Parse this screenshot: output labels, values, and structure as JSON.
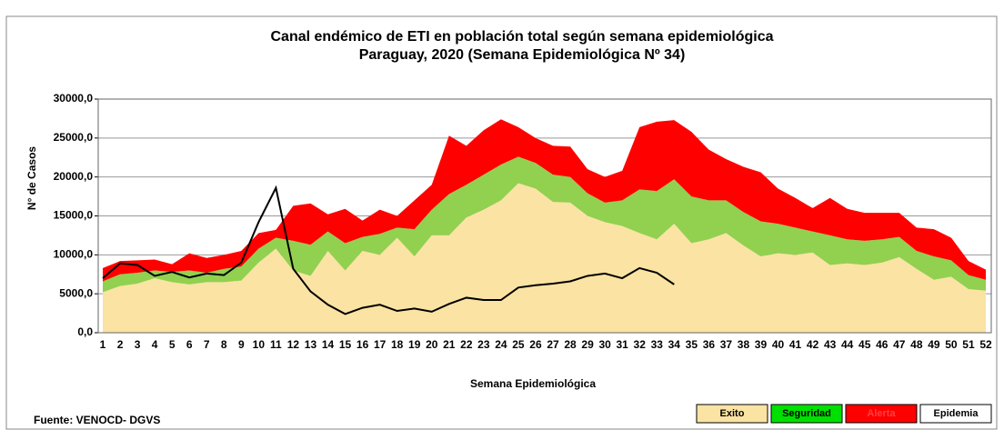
{
  "chart_data": {
    "type": "stacked_area",
    "title": "Canal endémico de ETI en población total según semana epidemiológica",
    "subtitle": "Paraguay, 2020 (Semana Epidemiológica Nº 34)",
    "y_label": "N° de Casos",
    "x_label": "Semana Epidemiológica",
    "source": "Fuente: VENOCD- DGVS",
    "categories": [
      "1",
      "2",
      "3",
      "4",
      "5",
      "6",
      "7",
      "8",
      "9",
      "10",
      "11",
      "12",
      "13",
      "14",
      "15",
      "16",
      "17",
      "18",
      "19",
      "20",
      "21",
      "22",
      "23",
      "24",
      "25",
      "26",
      "27",
      "28",
      "29",
      "30",
      "31",
      "32",
      "33",
      "34",
      "35",
      "36",
      "37",
      "38",
      "39",
      "40",
      "41",
      "42",
      "43",
      "44",
      "45",
      "46",
      "47",
      "48",
      "49",
      "50",
      "51",
      "52"
    ],
    "ylim": [
      0,
      30000
    ],
    "yticks": [
      {
        "value": 0,
        "label": "0,0"
      },
      {
        "value": 5000,
        "label": "5000,0"
      },
      {
        "value": 10000,
        "label": "10000,0"
      },
      {
        "value": 15000,
        "label": "15000,0"
      },
      {
        "value": 20000,
        "label": "20000,0"
      },
      {
        "value": 25000,
        "label": "25000,0"
      },
      {
        "value": 30000,
        "label": "30000,0"
      }
    ],
    "grid": true,
    "series": [
      {
        "name": "Exito",
        "color": "#fbe3a3",
        "values": [
          5200,
          6000,
          6300,
          7000,
          6500,
          6200,
          6500,
          6500,
          6700,
          9000,
          10800,
          8000,
          7300,
          10500,
          8000,
          10500,
          10000,
          12200,
          9800,
          12500,
          12500,
          14800,
          15800,
          17000,
          19200,
          18500,
          16800,
          16700,
          15000,
          14200,
          13700,
          12800,
          12000,
          14000,
          11500,
          12000,
          12800,
          11200,
          9800,
          10200,
          10000,
          10300,
          8700,
          8900,
          8700,
          9000,
          9700,
          8200,
          6800,
          7200,
          5600,
          5400
        ]
      },
      {
        "name": "Seguridad",
        "color": "#92d050",
        "legend_color": "#00e000",
        "values": [
          1400,
          1500,
          1400,
          1000,
          1300,
          1800,
          1200,
          1700,
          1800,
          1800,
          1400,
          3800,
          4000,
          2500,
          3500,
          1800,
          2700,
          1300,
          3500,
          3300,
          5300,
          4200,
          4500,
          4600,
          3400,
          3300,
          3500,
          3300,
          2900,
          2500,
          3300,
          5600,
          6200,
          5700,
          6000,
          5000,
          4200,
          4300,
          4500,
          3800,
          3500,
          2700,
          3800,
          3100,
          3100,
          3000,
          2600,
          2300,
          3000,
          2100,
          1800,
          1400
        ]
      },
      {
        "name": "Alerta",
        "color": "#ff0000",
        "values": [
          1700,
          1700,
          1600,
          1400,
          1000,
          2200,
          1900,
          1800,
          2000,
          2000,
          1000,
          4500,
          5300,
          2200,
          4400,
          2100,
          3100,
          1500,
          3700,
          3200,
          7500,
          5000,
          5700,
          5800,
          3800,
          3200,
          3700,
          3900,
          3100,
          3300,
          3800,
          8000,
          8900,
          7600,
          8300,
          6500,
          5300,
          5800,
          6300,
          4500,
          3800,
          3000,
          4800,
          3900,
          3600,
          3400,
          3100,
          3000,
          3500,
          2900,
          1800,
          1300
        ]
      },
      {
        "name": "Epidemia",
        "color": "#000000",
        "type": "line",
        "legend_color": "#ffffff",
        "values": [
          7000,
          8900,
          8700,
          7300,
          7800,
          7100,
          7600,
          7400,
          9000,
          14200,
          18600,
          8200,
          5300,
          3600,
          2400,
          3200,
          3600,
          2800,
          3100,
          2700,
          3700,
          4500,
          4200,
          4200,
          5800,
          6100,
          6300,
          6600,
          7300,
          7600,
          7000,
          8300,
          7700,
          6200,
          null,
          null,
          null,
          null,
          null,
          null,
          null,
          null,
          null,
          null,
          null,
          null,
          null,
          null,
          null,
          null,
          null,
          null
        ]
      }
    ]
  }
}
